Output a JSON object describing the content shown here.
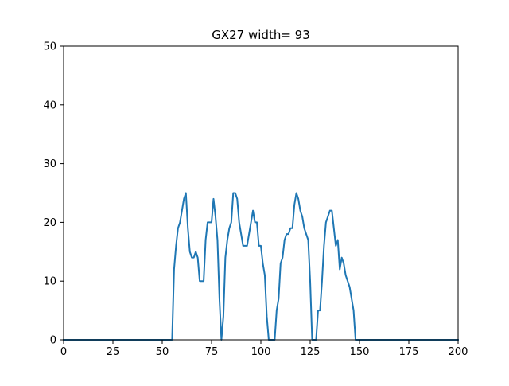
{
  "chart_data": {
    "type": "line",
    "title": "GX27 width= 93",
    "xlabel": "",
    "ylabel": "",
    "xlim": [
      0,
      200
    ],
    "ylim": [
      0,
      50
    ],
    "xticks": [
      0,
      25,
      50,
      75,
      100,
      125,
      150,
      175,
      200
    ],
    "yticks": [
      0,
      10,
      20,
      30,
      40,
      50
    ],
    "grid": false,
    "series": [
      {
        "color": "#1f77b4",
        "x": [
          0,
          1,
          2,
          3,
          4,
          5,
          6,
          7,
          8,
          9,
          10,
          11,
          12,
          13,
          14,
          15,
          16,
          17,
          18,
          19,
          20,
          21,
          22,
          23,
          24,
          25,
          26,
          27,
          28,
          29,
          30,
          31,
          32,
          33,
          34,
          35,
          36,
          37,
          38,
          39,
          40,
          41,
          42,
          43,
          44,
          45,
          46,
          47,
          48,
          49,
          50,
          51,
          52,
          53,
          54,
          55,
          56,
          57,
          58,
          59,
          60,
          61,
          62,
          63,
          64,
          65,
          66,
          67,
          68,
          69,
          70,
          71,
          72,
          73,
          74,
          75,
          76,
          77,
          78,
          79,
          80,
          81,
          82,
          83,
          84,
          85,
          86,
          87,
          88,
          89,
          90,
          91,
          92,
          93,
          94,
          95,
          96,
          97,
          98,
          99,
          100,
          101,
          102,
          103,
          104,
          105,
          106,
          107,
          108,
          109,
          110,
          111,
          112,
          113,
          114,
          115,
          116,
          117,
          118,
          119,
          120,
          121,
          122,
          123,
          124,
          125,
          126,
          127,
          128,
          129,
          130,
          131,
          132,
          133,
          134,
          135,
          136,
          137,
          138,
          139,
          140,
          141,
          142,
          143,
          144,
          145,
          146,
          147,
          148,
          149,
          150,
          151,
          152,
          153,
          154,
          155,
          156,
          157,
          158,
          159,
          160,
          161,
          162,
          163,
          164,
          165,
          166,
          167,
          168,
          169,
          170,
          171,
          172,
          173,
          174,
          175,
          176,
          177,
          178,
          179,
          180,
          181,
          182,
          183,
          184,
          185,
          186,
          187,
          188,
          189,
          190,
          191,
          192,
          193,
          194,
          195,
          196,
          197,
          198,
          199,
          200
        ],
        "y": [
          0,
          0,
          0,
          0,
          0,
          0,
          0,
          0,
          0,
          0,
          0,
          0,
          0,
          0,
          0,
          0,
          0,
          0,
          0,
          0,
          0,
          0,
          0,
          0,
          0,
          0,
          0,
          0,
          0,
          0,
          0,
          0,
          0,
          0,
          0,
          0,
          0,
          0,
          0,
          0,
          0,
          0,
          0,
          0,
          0,
          0,
          0,
          0,
          0,
          0,
          0,
          0,
          0,
          0,
          0,
          0,
          12,
          16,
          19,
          20,
          22,
          24,
          25,
          19,
          15,
          14,
          14,
          15,
          14,
          10,
          10,
          10,
          17,
          20,
          20,
          20,
          24,
          21,
          17,
          7,
          0,
          4,
          14,
          17,
          19,
          20,
          25,
          25,
          24,
          20,
          18,
          16,
          16,
          16,
          18,
          20,
          22,
          20,
          20,
          16,
          16,
          13,
          11,
          4,
          0,
          0,
          0,
          0,
          5,
          7,
          13,
          14,
          17,
          18,
          18,
          19,
          19,
          23,
          25,
          24,
          22,
          21,
          19,
          18,
          17,
          10,
          0,
          0,
          0,
          5,
          5,
          10,
          16,
          20,
          21,
          22,
          22,
          19,
          16,
          17,
          12,
          14,
          13,
          11,
          10,
          9,
          7,
          5,
          0,
          0,
          0,
          0,
          0,
          0,
          0,
          0,
          0,
          0,
          0,
          0,
          0,
          0,
          0,
          0,
          0,
          0,
          0,
          0,
          0,
          0,
          0,
          0,
          0,
          0,
          0,
          0,
          0,
          0,
          0,
          0,
          0,
          0,
          0,
          0,
          0,
          0,
          0,
          0,
          0,
          0,
          0,
          0,
          0,
          0,
          0,
          0,
          0,
          0,
          0,
          0,
          0
        ]
      }
    ]
  }
}
